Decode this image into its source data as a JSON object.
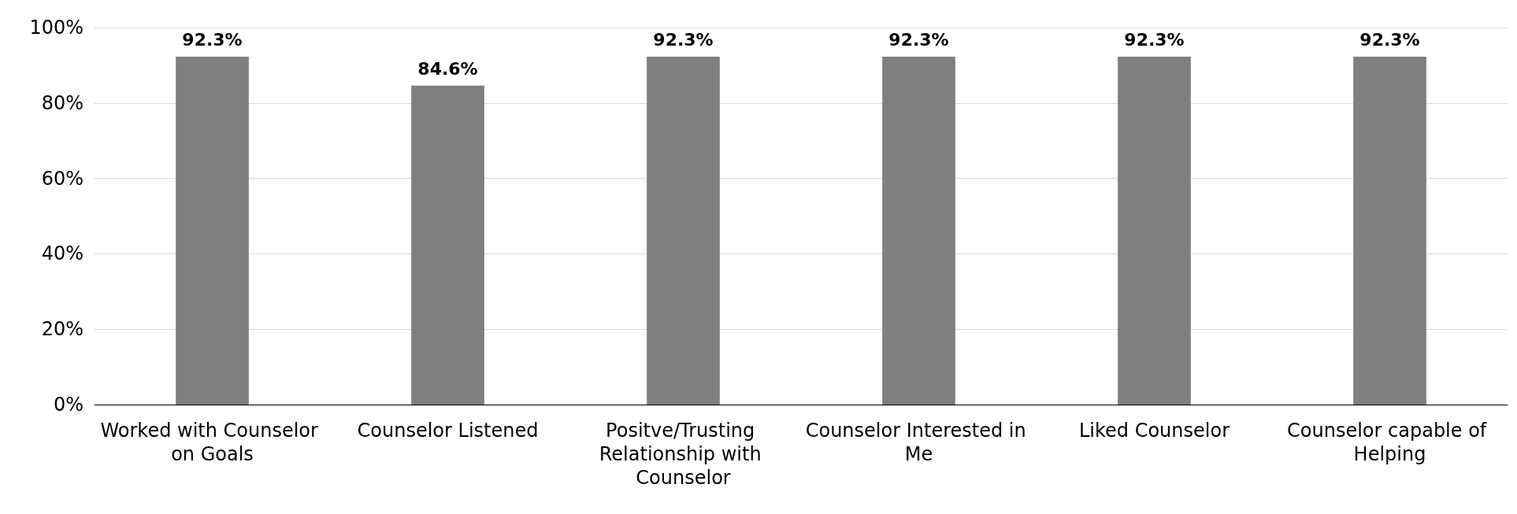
{
  "chart_data": {
    "type": "bar",
    "categories": [
      "Worked with Counselor on Goals",
      "Counselor Listened",
      "Positve/Trusting Relationship with Counselor",
      "Counselor Interested in Me",
      "Liked Counselor",
      "Counselor capable of Helping"
    ],
    "values": [
      92.3,
      84.6,
      92.3,
      92.3,
      92.3,
      92.3
    ],
    "value_labels": [
      "92.3%",
      "84.6%",
      "92.3%",
      "92.3%",
      "92.3%",
      "92.3%"
    ],
    "color": "#7f7f7f",
    "ylim": [
      0,
      100
    ],
    "yticks": [
      {
        "value": 0,
        "label": "0%"
      },
      {
        "value": 20,
        "label": "20%"
      },
      {
        "value": 40,
        "label": "40%"
      },
      {
        "value": 60,
        "label": "60%"
      },
      {
        "value": 80,
        "label": "80%"
      },
      {
        "value": 100,
        "label": "100%"
      }
    ],
    "grid": "y"
  }
}
